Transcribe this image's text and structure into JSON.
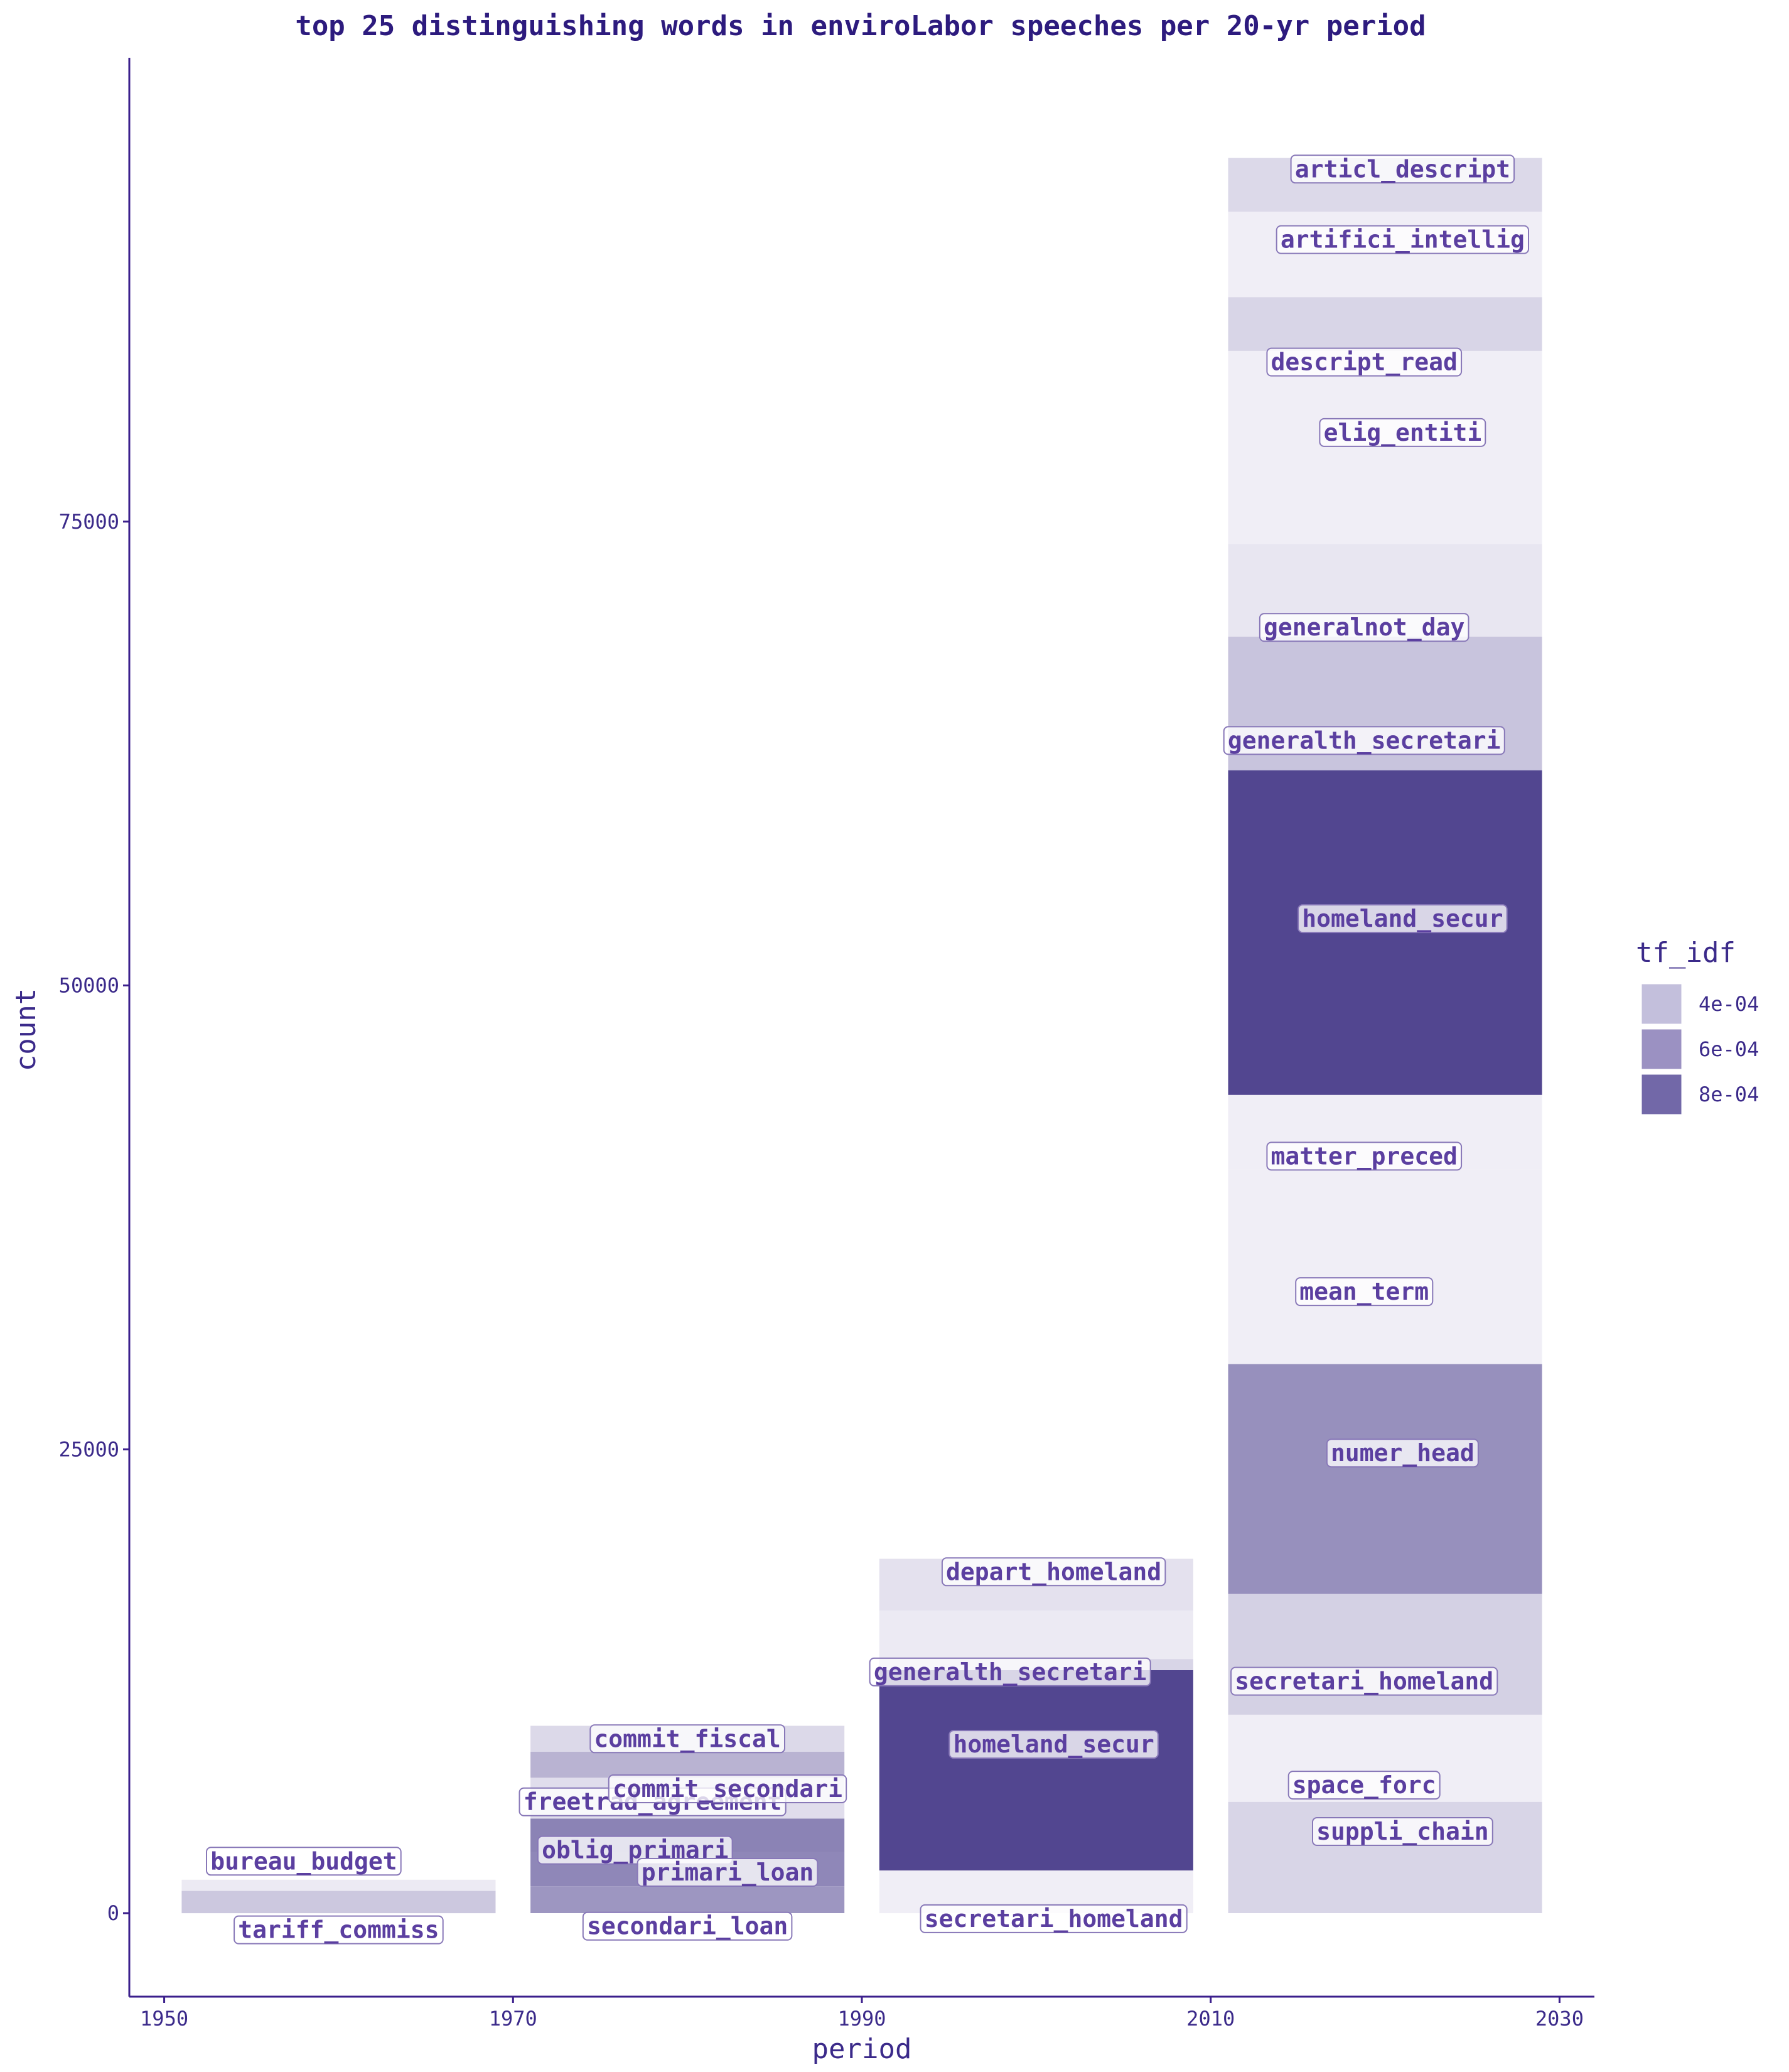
{
  "chart_data": {
    "type": "bar",
    "title": "top 25 distinguishing words in enviroLabor speeches per 20-yr period",
    "xlabel": "period",
    "ylabel": "count",
    "xlim": [
      1948,
      2032
    ],
    "ylim": [
      -4500,
      100000
    ],
    "x_ticks": [
      1950,
      1970,
      1990,
      2010,
      2030
    ],
    "y_ticks": [
      0,
      25000,
      50000,
      75000
    ],
    "grid": false,
    "legend": {
      "title": "tf_idf",
      "position": "right",
      "entries": [
        {
          "label": "4e-04",
          "value": 0.0004,
          "color": "#c3bfdc"
        },
        {
          "label": "6e-04",
          "value": 0.0006,
          "color": "#9b91c2"
        },
        {
          "label": "8e-04",
          "value": 0.0008,
          "color": "#7268a8"
        }
      ]
    },
    "color_scale": {
      "low": 0.0002,
      "high": 0.00105,
      "low_color": "#f0eef6",
      "high_color": "#483c8a"
    },
    "bar_half_width": 9,
    "groups": [
      {
        "period": 1960,
        "segments": [
          {
            "word": "tariff_commiss",
            "count": 1200,
            "tf_idf": 0.00038
          },
          {
            "word": "bureau_budget",
            "count": 600,
            "tf_idf": 0.00022
          }
        ]
      },
      {
        "period": 1980,
        "segments": [
          {
            "word": "secondari_loan",
            "count": 1450,
            "tf_idf": 0.00062
          },
          {
            "word": "primari_loan",
            "count": 1850,
            "tf_idf": 0.00069
          },
          {
            "word": "oblig_primari",
            "count": 1800,
            "tf_idf": 0.00071
          },
          {
            "word": "commit_secondari",
            "count": 2200,
            "tf_idf": 0.00028
          },
          {
            "word": "freetrad_agreement",
            "count": 1400,
            "tf_idf": 0.00048
          },
          {
            "word": "commit_fiscal",
            "count": 1400,
            "tf_idf": 0.0003
          }
        ]
      },
      {
        "period": 2000,
        "segments": [
          {
            "word": "secretari_homeland",
            "count": 2300,
            "tf_idf": 0.00018
          },
          {
            "word": "homeland_secur",
            "count": 10800,
            "tf_idf": 0.001
          },
          {
            "word": "generalth_secretari",
            "count": 600,
            "tf_idf": 0.00032
          },
          {
            "word": "depart_homeland",
            "count": 2600,
            "tf_idf": 0.00022
          },
          {
            "word": "depart_homeland",
            "count": 2800,
            "tf_idf": 0.00026
          }
        ]
      },
      {
        "period": 2020,
        "segments": [
          {
            "word": "suppli_chain",
            "count": 6000,
            "tf_idf": 0.00032
          },
          {
            "word": "space_forc",
            "count": 4700,
            "tf_idf": 0.0002
          },
          {
            "word": "secretari_homeland",
            "count": 6500,
            "tf_idf": 0.00034
          },
          {
            "word": "numer_head",
            "count": 12400,
            "tf_idf": 0.00065
          },
          {
            "word": "mean_term",
            "count": 10500,
            "tf_idf": 0.0002
          },
          {
            "word": "matter_preced",
            "count": 4000,
            "tf_idf": 0.0002
          },
          {
            "word": "homeland_secur",
            "count": 17500,
            "tf_idf": 0.001
          },
          {
            "word": "generalth_secretari",
            "count": 7200,
            "tf_idf": 0.0004
          },
          {
            "word": "generalnot_day",
            "count": 5000,
            "tf_idf": 0.00024
          },
          {
            "word": "elig_entiti",
            "count": 10400,
            "tf_idf": 0.0002
          },
          {
            "word": "descript_read",
            "count": 2900,
            "tf_idf": 0.00032
          },
          {
            "word": "artifici_intellig",
            "count": 4600,
            "tf_idf": 0.0002
          },
          {
            "word": "articl_descript",
            "count": 2900,
            "tf_idf": 0.0003
          }
        ]
      }
    ],
    "labels": [
      {
        "text": "bureau_budget",
        "x": 1958.0,
        "y": 2800
      },
      {
        "text": "tariff_commiss",
        "x": 1960.0,
        "y": -900
      },
      {
        "text": "commit_fiscal",
        "x": 1980.0,
        "y": 9400
      },
      {
        "text": "freetrad_agreement",
        "x": 1978.0,
        "y": 6000
      },
      {
        "text": "commit_secondari",
        "x": 1982.3,
        "y": 6700
      },
      {
        "text": "oblig_primari",
        "x": 1977.0,
        "y": 3400
      },
      {
        "text": "primari_loan",
        "x": 1982.3,
        "y": 2200
      },
      {
        "text": "secondari_loan",
        "x": 1980.0,
        "y": -700
      },
      {
        "text": "depart_homeland",
        "x": 2001.0,
        "y": 18400
      },
      {
        "text": "generalth_secretari",
        "x": 1998.5,
        "y": 13000
      },
      {
        "text": "homeland_secur",
        "x": 2001.0,
        "y": 9100
      },
      {
        "text": "secretari_homeland",
        "x": 2001.0,
        "y": -300
      },
      {
        "text": "articl_descript",
        "x": 2021.0,
        "y": 94000
      },
      {
        "text": "artifici_intellig",
        "x": 2021.0,
        "y": 90200
      },
      {
        "text": "descript_read",
        "x": 2018.8,
        "y": 83600
      },
      {
        "text": "elig_entiti",
        "x": 2021.0,
        "y": 79800
      },
      {
        "text": "generalnot_day",
        "x": 2018.8,
        "y": 69300
      },
      {
        "text": "generalth_secretari",
        "x": 2018.8,
        "y": 63200
      },
      {
        "text": "homeland_secur",
        "x": 2021.0,
        "y": 53600
      },
      {
        "text": "matter_preced",
        "x": 2018.8,
        "y": 40800
      },
      {
        "text": "mean_term",
        "x": 2018.8,
        "y": 33500
      },
      {
        "text": "numer_head",
        "x": 2021.0,
        "y": 24800
      },
      {
        "text": "secretari_homeland",
        "x": 2018.8,
        "y": 12500
      },
      {
        "text": "space_forc",
        "x": 2018.8,
        "y": 6900
      },
      {
        "text": "suppli_chain",
        "x": 2021.0,
        "y": 4400
      }
    ]
  }
}
